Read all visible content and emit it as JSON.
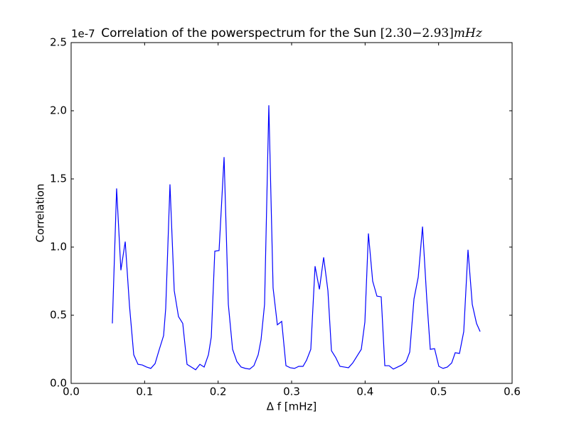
{
  "chart_data": {
    "type": "line",
    "title": "Correlation of the powerspectrum for the Sun",
    "title_range": "[2.30−2.93]",
    "title_unit": "mHz",
    "y_offset_label": "1e-7",
    "x_label": "Δ f [mHz]",
    "y_label": "Correlation",
    "color": "#0000ff",
    "x": [
      0.0561,
      0.0619,
      0.0677,
      0.0736,
      0.0794,
      0.0852,
      0.091,
      0.0968,
      0.1026,
      0.1084,
      0.1142,
      0.12,
      0.1258,
      0.1287,
      0.1345,
      0.1403,
      0.1461,
      0.1519,
      0.1577,
      0.1636,
      0.1694,
      0.1752,
      0.181,
      0.1868,
      0.1907,
      0.1955,
      0.2013,
      0.2081,
      0.2139,
      0.2197,
      0.2255,
      0.2313,
      0.2371,
      0.2429,
      0.2487,
      0.2545,
      0.2584,
      0.2632,
      0.269,
      0.2748,
      0.2806,
      0.2865,
      0.2923,
      0.2981,
      0.3039,
      0.3097,
      0.3155,
      0.3203,
      0.3261,
      0.3319,
      0.3378,
      0.3436,
      0.3494,
      0.3542,
      0.36,
      0.3658,
      0.3716,
      0.3774,
      0.3832,
      0.389,
      0.3948,
      0.3997,
      0.4045,
      0.4103,
      0.4161,
      0.4219,
      0.4268,
      0.4326,
      0.4384,
      0.4442,
      0.45,
      0.4558,
      0.4607,
      0.4665,
      0.4723,
      0.4781,
      0.4839,
      0.4887,
      0.4945,
      0.5003,
      0.5061,
      0.5119,
      0.5178,
      0.5226,
      0.5284,
      0.5342,
      0.54,
      0.5458,
      0.5516,
      0.5565
    ],
    "values": [
      0.44,
      1.43,
      0.83,
      1.04,
      0.57,
      0.21,
      0.14,
      0.135,
      0.12,
      0.11,
      0.145,
      0.25,
      0.35,
      0.55,
      1.46,
      0.68,
      0.49,
      0.44,
      0.14,
      0.12,
      0.1,
      0.14,
      0.12,
      0.21,
      0.34,
      0.97,
      0.975,
      1.66,
      0.58,
      0.25,
      0.16,
      0.12,
      0.11,
      0.105,
      0.13,
      0.21,
      0.32,
      0.58,
      2.04,
      0.7,
      0.43,
      0.455,
      0.13,
      0.115,
      0.11,
      0.125,
      0.125,
      0.17,
      0.25,
      0.86,
      0.69,
      0.925,
      0.68,
      0.24,
      0.19,
      0.125,
      0.12,
      0.115,
      0.15,
      0.2,
      0.25,
      0.45,
      1.1,
      0.75,
      0.64,
      0.635,
      0.13,
      0.13,
      0.105,
      0.12,
      0.135,
      0.16,
      0.23,
      0.62,
      0.78,
      1.15,
      0.62,
      0.25,
      0.255,
      0.125,
      0.11,
      0.12,
      0.15,
      0.225,
      0.22,
      0.38,
      0.98,
      0.58,
      0.44,
      0.38
    ],
    "xlim": [
      0,
      0.6
    ],
    "xticks": [
      {
        "value": 0,
        "label": "0.0"
      },
      0.1,
      0.2,
      0.3,
      0.4,
      0.5,
      0.6
    ],
    "ylim": [
      0,
      2.5
    ],
    "yticks": [
      {
        "value": 0,
        "label": "0.0"
      },
      0.5,
      {
        "value": 1,
        "label": "1.0"
      },
      1.5,
      {
        "value": 2,
        "label": "2.0"
      },
      2.5
    ],
    "grid": false
  }
}
